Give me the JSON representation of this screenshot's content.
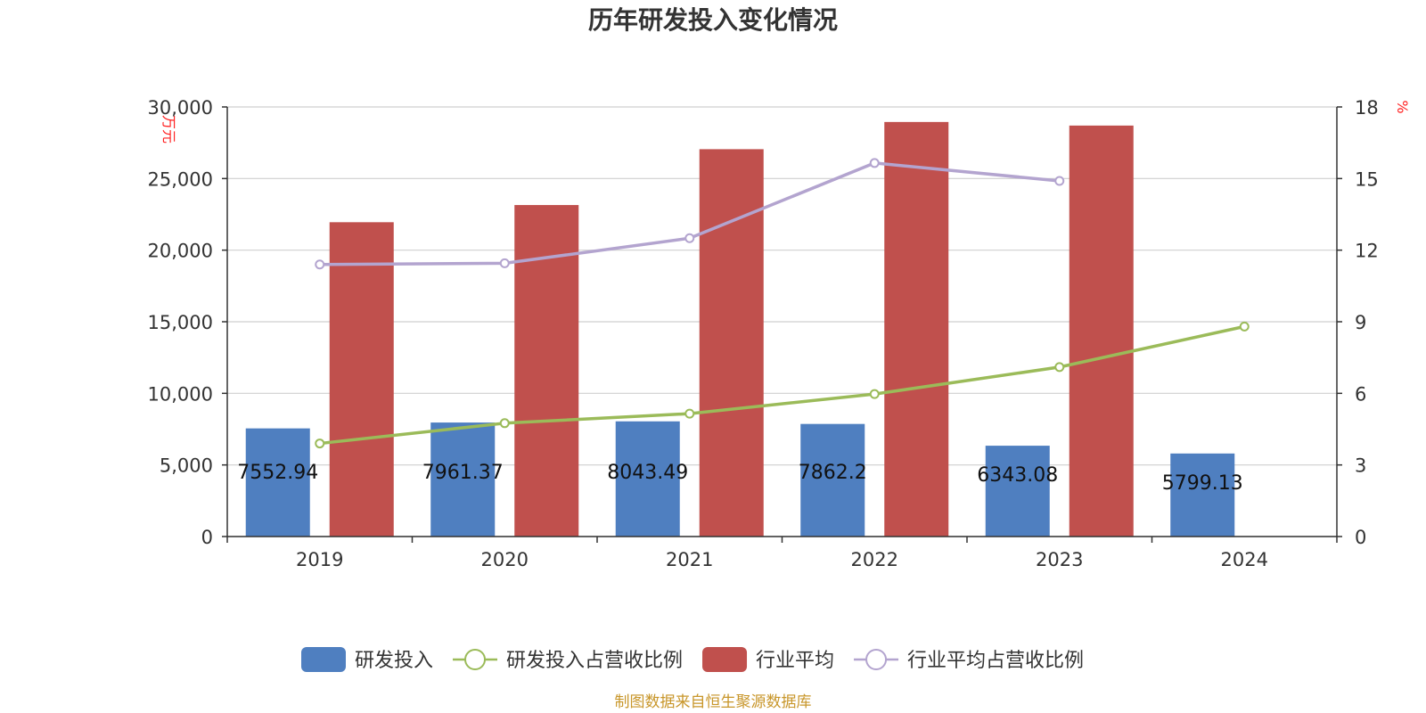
{
  "chart_data": {
    "type": "bar",
    "title": "历年研发投入变化情况",
    "categories": [
      "2019",
      "2020",
      "2021",
      "2022",
      "2023",
      "2024"
    ],
    "y_left": {
      "unit": "万元",
      "ylim": [
        0,
        30000
      ],
      "ticks": [
        "0",
        "5,000",
        "10,000",
        "15,000",
        "20,000",
        "25,000",
        "30,000"
      ],
      "tick_values": [
        0,
        5000,
        10000,
        15000,
        20000,
        25000,
        30000
      ]
    },
    "y_right": {
      "unit": "%",
      "ylim": [
        0,
        18
      ],
      "ticks": [
        "0",
        "3",
        "6",
        "9",
        "12",
        "15",
        "18"
      ],
      "tick_values": [
        0,
        3,
        6,
        9,
        12,
        15,
        18
      ]
    },
    "series": [
      {
        "name": "研发投入",
        "type": "bar",
        "axis": "left",
        "color": "#4f7fc0",
        "values": [
          7552.94,
          7961.37,
          8043.49,
          7862.2,
          6343.08,
          5799.13
        ],
        "labels": [
          "7552.94",
          "7961.37",
          "8043.49",
          "7862.2",
          "6343.08",
          "5799.13"
        ]
      },
      {
        "name": "研发投入占营收比例",
        "type": "line",
        "axis": "right",
        "color": "#9bbb59",
        "values": [
          3.9,
          4.75,
          5.15,
          5.97,
          7.1,
          8.8
        ]
      },
      {
        "name": "行业平均",
        "type": "bar",
        "axis": "left",
        "color": "#c0504d",
        "values": [
          21950,
          23150,
          27050,
          28950,
          28700,
          null
        ]
      },
      {
        "name": "行业平均占营收比例",
        "type": "line",
        "axis": "right",
        "color": "#b3a4cf",
        "values": [
          11.4,
          11.45,
          12.5,
          15.65,
          14.9,
          null
        ]
      }
    ],
    "grid": true,
    "legend_position": "bottom"
  },
  "source_text": "制图数据来自恒生聚源数据库"
}
